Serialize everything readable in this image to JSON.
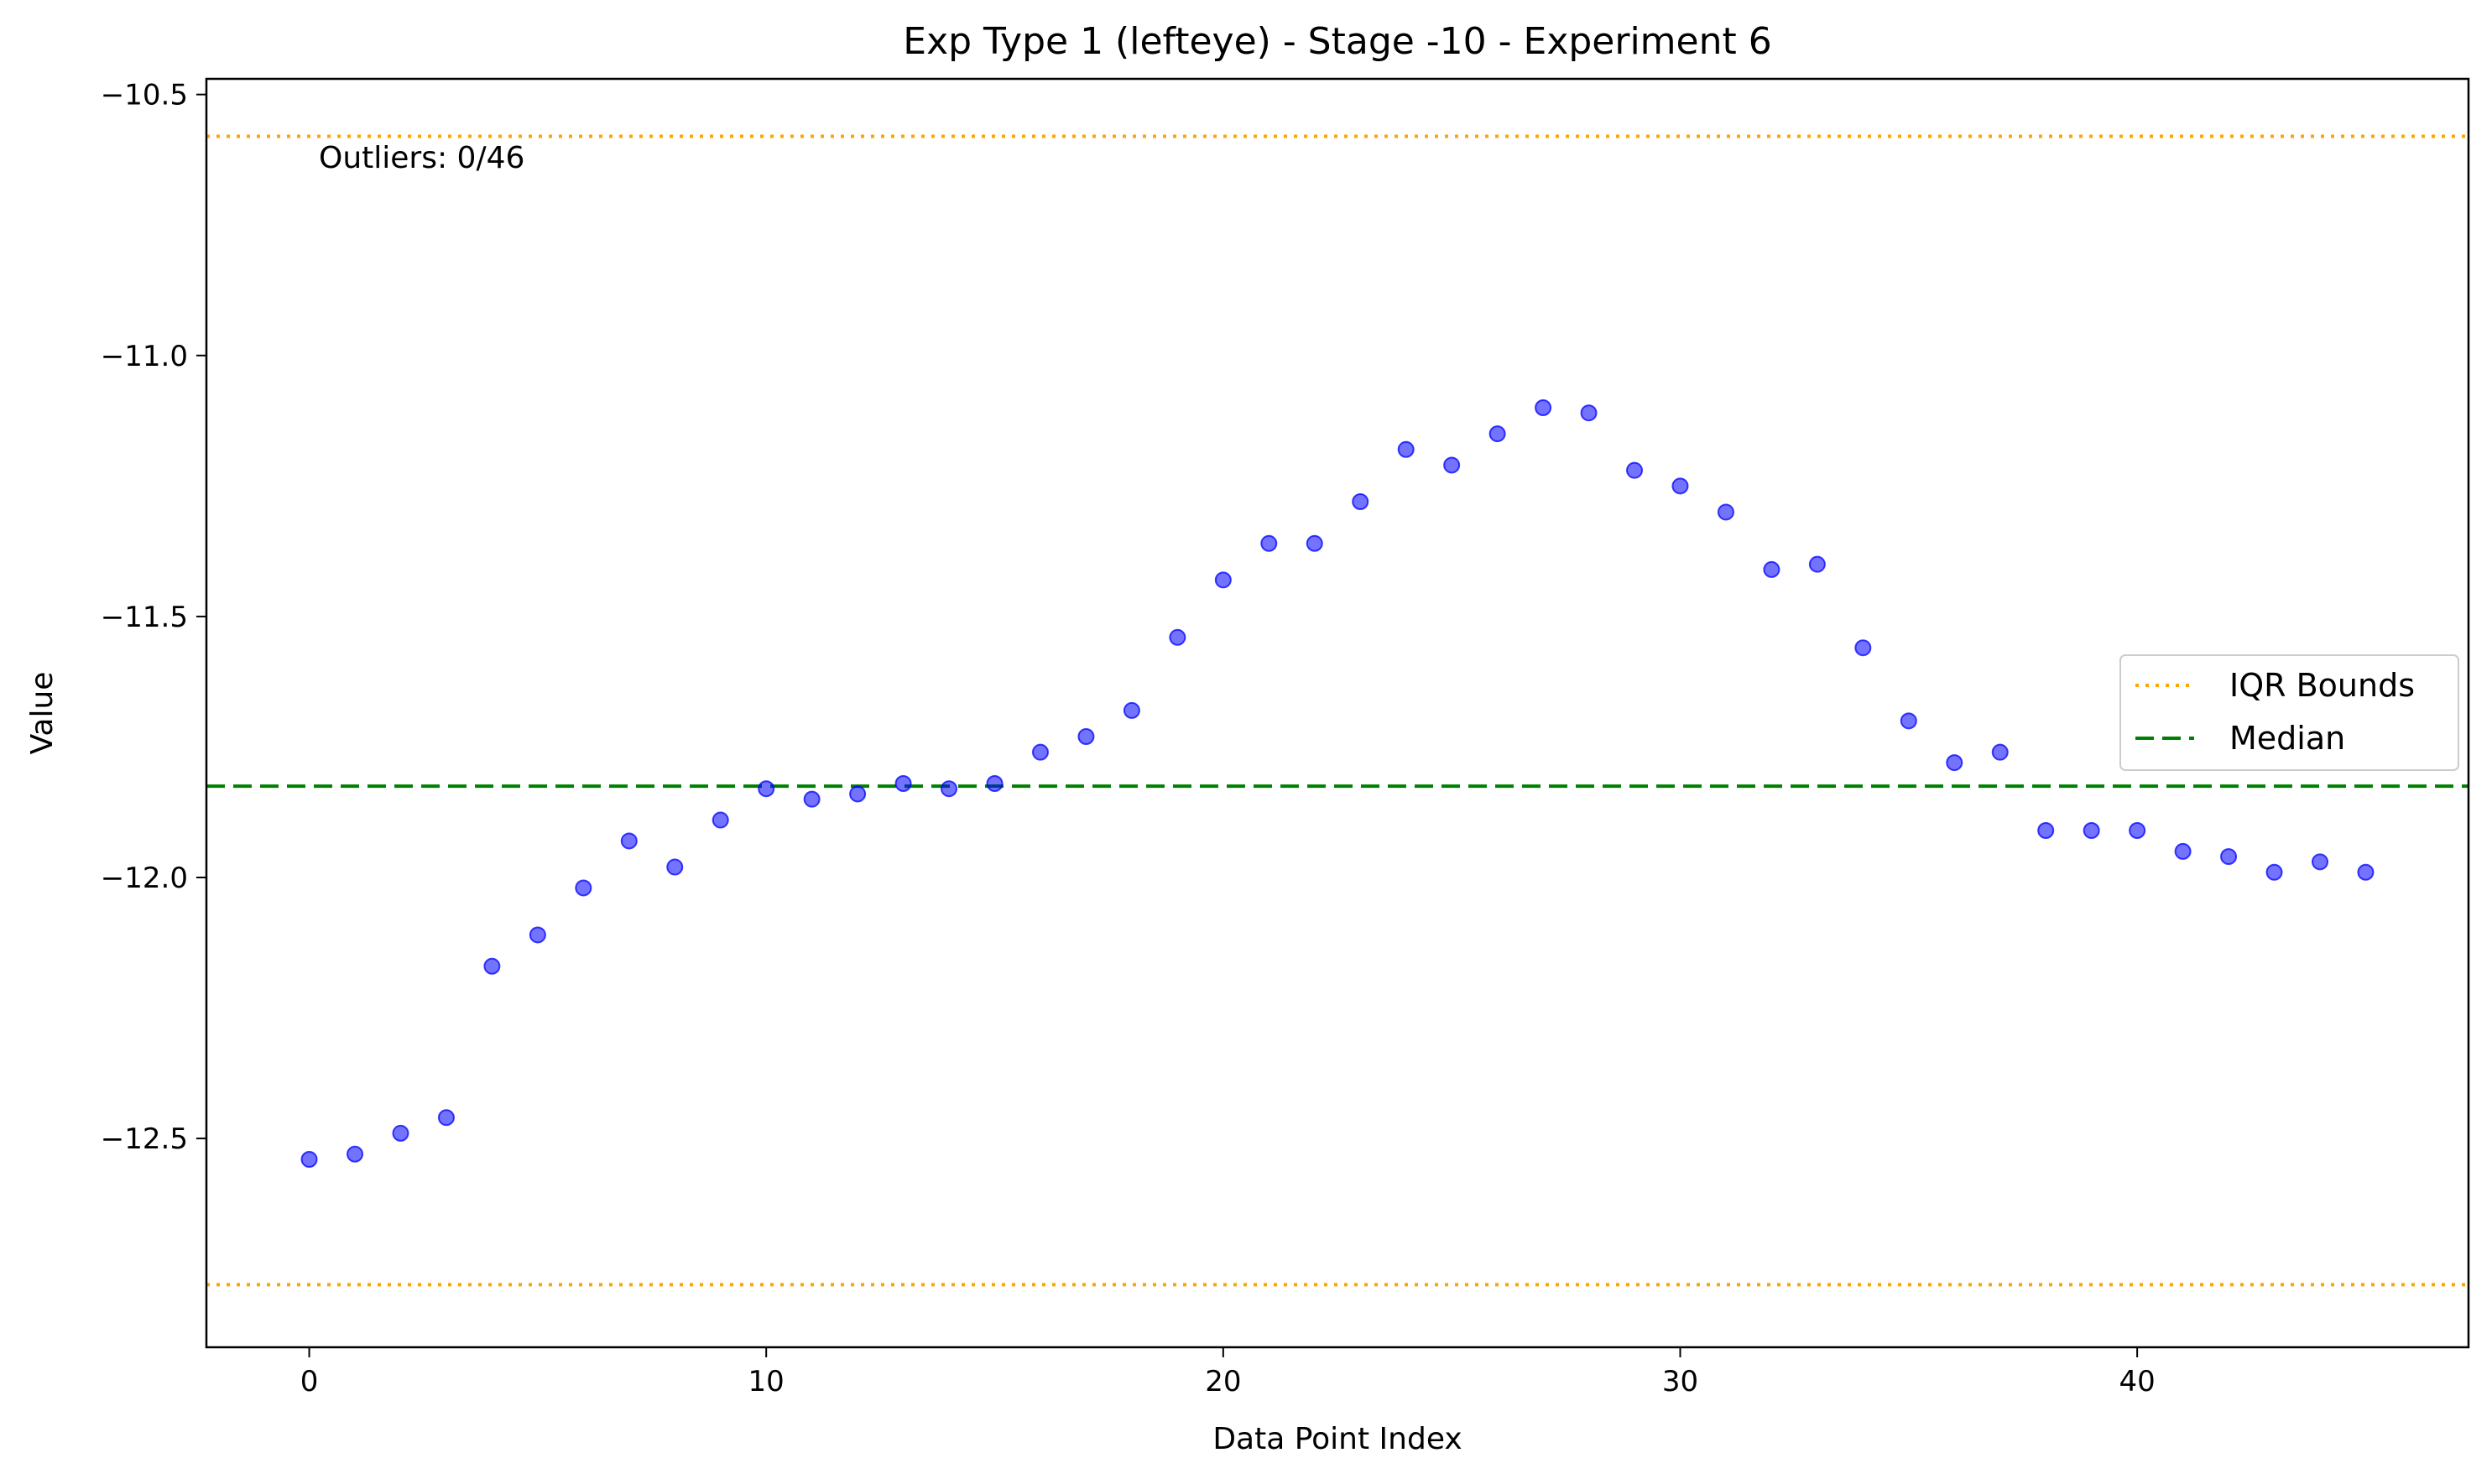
{
  "chart_data": {
    "type": "scatter",
    "title": "Exp Type 1 (lefteye) - Stage -10 - Experiment 6",
    "xlabel": "Data Point Index",
    "ylabel": "Value",
    "xlim": [
      -2.25,
      47.25
    ],
    "ylim": [
      -12.9,
      -10.47
    ],
    "xticks": [
      {
        "value": 0,
        "label": "0"
      },
      {
        "value": 10,
        "label": "10"
      },
      {
        "value": 20,
        "label": "20"
      },
      {
        "value": 30,
        "label": "30"
      },
      {
        "value": 40,
        "label": "40"
      }
    ],
    "yticks": [
      {
        "value": -10.5,
        "label": "−10.5"
      },
      {
        "value": -11.0,
        "label": "−11.0"
      },
      {
        "value": -11.5,
        "label": "−11.5"
      },
      {
        "value": -12.0,
        "label": "−12.0"
      },
      {
        "value": -12.5,
        "label": "−12.5"
      }
    ],
    "grid": false,
    "x": [
      0,
      1,
      2,
      3,
      4,
      5,
      6,
      7,
      8,
      9,
      10,
      11,
      12,
      13,
      14,
      15,
      16,
      17,
      18,
      19,
      20,
      21,
      22,
      23,
      24,
      25,
      26,
      27,
      28,
      29,
      30,
      31,
      32,
      33,
      34,
      35,
      36,
      37,
      38,
      39,
      40,
      41,
      42,
      43,
      44,
      45
    ],
    "y": [
      -12.54,
      -12.53,
      -12.49,
      -12.46,
      -12.17,
      -12.11,
      -12.02,
      -11.93,
      -11.98,
      -11.89,
      -11.83,
      -11.85,
      -11.84,
      -11.82,
      -11.83,
      -11.82,
      -11.76,
      -11.73,
      -11.68,
      -11.54,
      -11.43,
      -11.36,
      -11.36,
      -11.28,
      -11.18,
      -11.21,
      -11.15,
      -11.1,
      -11.11,
      -11.22,
      -11.25,
      -11.3,
      -11.41,
      -11.4,
      -11.56,
      -11.7,
      -11.78,
      -11.76,
      -11.91,
      -11.91,
      -11.91,
      -11.95,
      -11.96,
      -11.99,
      -11.97,
      -11.99
    ],
    "point_color": "#0000ff",
    "reference_lines": [
      {
        "kind": "iqr_upper",
        "value": -10.58,
        "color": "#ffa500",
        "style": "dotted"
      },
      {
        "kind": "iqr_lower",
        "value": -12.78,
        "color": "#ffa500",
        "style": "dotted"
      },
      {
        "kind": "median",
        "value": -11.825,
        "color": "#008000",
        "style": "dashed"
      }
    ],
    "legend": {
      "placement": "center-right",
      "entries": [
        {
          "label": "IQR Bounds",
          "color": "#ffa500",
          "style": "dotted"
        },
        {
          "label": "Median",
          "color": "#008000",
          "style": "dashed"
        }
      ]
    },
    "annotation": "Outliers: 0/46"
  }
}
